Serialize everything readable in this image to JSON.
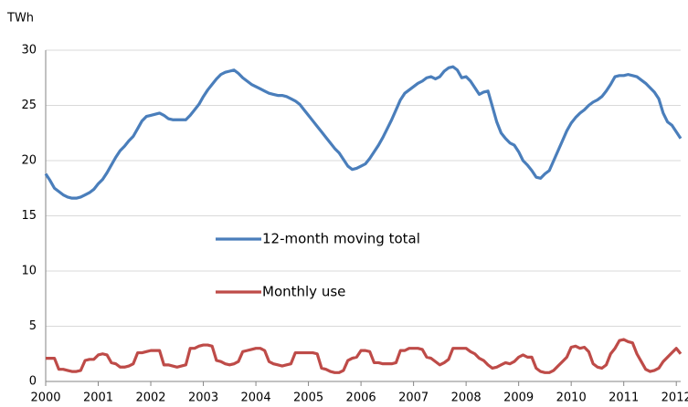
{
  "chart_data": {
    "type": "line",
    "y_label": "TWh",
    "categories": [
      "2000",
      null,
      null,
      null,
      null,
      null,
      null,
      null,
      null,
      null,
      null,
      null,
      "2001",
      null,
      null,
      null,
      null,
      null,
      null,
      null,
      null,
      null,
      null,
      null,
      "2002",
      null,
      null,
      null,
      null,
      null,
      null,
      null,
      null,
      null,
      null,
      null,
      "2003",
      null,
      null,
      null,
      null,
      null,
      null,
      null,
      null,
      null,
      null,
      null,
      "2004",
      null,
      null,
      null,
      null,
      null,
      null,
      null,
      null,
      null,
      null,
      null,
      "2005",
      null,
      null,
      null,
      null,
      null,
      null,
      null,
      null,
      null,
      null,
      null,
      "2006",
      null,
      null,
      null,
      null,
      null,
      null,
      null,
      null,
      null,
      null,
      null,
      "2007",
      null,
      null,
      null,
      null,
      null,
      null,
      null,
      null,
      null,
      null,
      null,
      "2008",
      null,
      null,
      null,
      null,
      null,
      null,
      null,
      null,
      null,
      null,
      null,
      "2009",
      null,
      null,
      null,
      null,
      null,
      null,
      null,
      null,
      null,
      null,
      null,
      "2010",
      null,
      null,
      null,
      null,
      null,
      null,
      null,
      null,
      null,
      null,
      null,
      "2011",
      null,
      null,
      null,
      null,
      null,
      null,
      null,
      null,
      null,
      null,
      null,
      "2012",
      null
    ],
    "series": [
      {
        "name": "12-month moving total",
        "color": "#4a7ebb",
        "values": [
          18.8,
          18.2,
          17.5,
          17.2,
          16.9,
          16.7,
          16.6,
          16.6,
          16.7,
          16.9,
          17.1,
          17.4,
          17.9,
          18.3,
          18.9,
          19.6,
          20.3,
          20.9,
          21.3,
          21.8,
          22.2,
          22.9,
          23.6,
          24.0,
          24.1,
          24.2,
          24.3,
          24.1,
          23.8,
          23.7,
          23.7,
          23.7,
          23.7,
          24.1,
          24.6,
          25.1,
          25.8,
          26.4,
          26.9,
          27.4,
          27.8,
          28.0,
          28.1,
          28.2,
          27.9,
          27.5,
          27.2,
          26.9,
          26.7,
          26.5,
          26.3,
          26.1,
          26.0,
          25.9,
          25.9,
          25.8,
          25.6,
          25.4,
          25.1,
          24.6,
          24.1,
          23.6,
          23.1,
          22.6,
          22.1,
          21.6,
          21.1,
          20.7,
          20.1,
          19.5,
          19.2,
          19.3,
          19.5,
          19.7,
          20.2,
          20.8,
          21.4,
          22.1,
          22.9,
          23.7,
          24.6,
          25.5,
          26.1,
          26.4,
          26.7,
          27.0,
          27.2,
          27.5,
          27.6,
          27.4,
          27.6,
          28.1,
          28.4,
          28.5,
          28.2,
          27.5,
          27.6,
          27.2,
          26.6,
          26.0,
          26.2,
          26.3,
          24.9,
          23.5,
          22.5,
          22.0,
          21.6,
          21.4,
          20.8,
          20.0,
          19.6,
          19.1,
          18.5,
          18.4,
          18.8,
          19.1,
          20.0,
          20.9,
          21.8,
          22.7,
          23.4,
          23.9,
          24.3,
          24.6,
          25.0,
          25.3,
          25.5,
          25.8,
          26.3,
          26.9,
          27.6,
          27.7,
          27.7,
          27.8,
          27.7,
          27.6,
          27.3,
          27.0,
          26.6,
          26.2,
          25.6,
          24.3,
          23.5,
          23.2,
          22.6,
          22.0
        ]
      },
      {
        "name": "Monthly use",
        "color": "#be4b48",
        "values": [
          2.1,
          2.1,
          2.1,
          1.1,
          1.1,
          1.0,
          0.9,
          0.9,
          1.0,
          1.9,
          2.0,
          2.0,
          2.4,
          2.5,
          2.4,
          1.7,
          1.6,
          1.3,
          1.3,
          1.4,
          1.6,
          2.6,
          2.6,
          2.7,
          2.8,
          2.8,
          2.8,
          1.5,
          1.5,
          1.4,
          1.3,
          1.4,
          1.5,
          3.0,
          3.0,
          3.2,
          3.3,
          3.3,
          3.2,
          1.9,
          1.8,
          1.6,
          1.5,
          1.6,
          1.8,
          2.7,
          2.8,
          2.9,
          3.0,
          3.0,
          2.8,
          1.8,
          1.6,
          1.5,
          1.4,
          1.5,
          1.6,
          2.6,
          2.6,
          2.6,
          2.6,
          2.6,
          2.5,
          1.2,
          1.1,
          0.9,
          0.8,
          0.8,
          1.0,
          1.9,
          2.1,
          2.2,
          2.8,
          2.8,
          2.7,
          1.7,
          1.7,
          1.6,
          1.6,
          1.6,
          1.7,
          2.8,
          2.8,
          3.0,
          3.0,
          3.0,
          2.9,
          2.2,
          2.1,
          1.8,
          1.5,
          1.7,
          2.0,
          3.0,
          3.0,
          3.0,
          3.0,
          2.7,
          2.5,
          2.1,
          1.9,
          1.5,
          1.2,
          1.3,
          1.5,
          1.7,
          1.6,
          1.8,
          2.2,
          2.4,
          2.2,
          2.2,
          1.2,
          0.9,
          0.8,
          0.8,
          1.0,
          1.4,
          1.8,
          2.2,
          3.1,
          3.2,
          3.0,
          3.1,
          2.7,
          1.6,
          1.3,
          1.2,
          1.5,
          2.5,
          3.0,
          3.7,
          3.8,
          3.6,
          3.5,
          2.5,
          1.8,
          1.1,
          0.9,
          1.0,
          1.2,
          1.8,
          2.2,
          2.6,
          3.0,
          2.5
        ]
      }
    ],
    "ylim": [
      0,
      30
    ],
    "yticks": [
      0,
      5,
      10,
      15,
      20,
      25,
      30
    ],
    "grid": true
  }
}
